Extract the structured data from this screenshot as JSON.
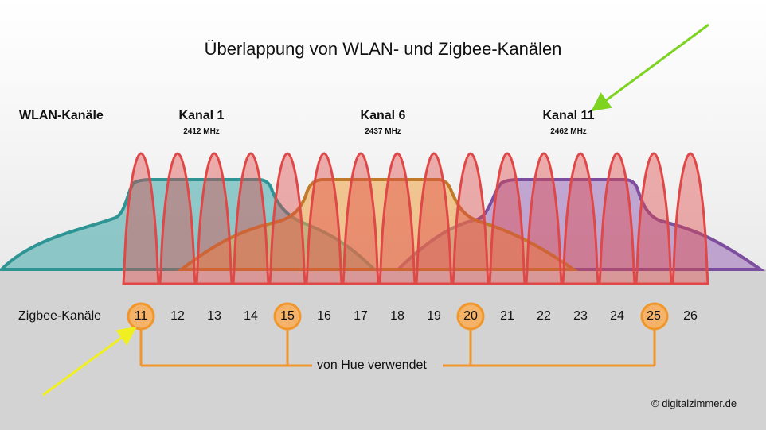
{
  "title": "Überlappung von WLAN- und Zigbee-Kanälen",
  "wlan": {
    "label": "WLAN-Kanäle",
    "channels": [
      {
        "name": "Kanal 1",
        "freq": "2412 MHz",
        "color": "#3ea8a8"
      },
      {
        "name": "Kanal 6",
        "freq": "2437 MHz",
        "color": "#f0a040"
      },
      {
        "name": "Kanal 11",
        "freq": "2462 MHz",
        "color": "#9a68b8"
      }
    ]
  },
  "zigbee": {
    "label": "Zigbee-Kanäle",
    "channels": [
      "11",
      "12",
      "13",
      "14",
      "15",
      "16",
      "17",
      "18",
      "19",
      "20",
      "21",
      "22",
      "23",
      "24",
      "25",
      "26"
    ],
    "highlighted": [
      "11",
      "15",
      "20",
      "25"
    ],
    "peak_color": "#e04848",
    "highlight_color": "#f0962a"
  },
  "hue_label": "von Hue verwendet",
  "copyright": "© digitalzimmer.de",
  "arrows": {
    "green": "#7ed321",
    "yellow": "#f0f020"
  }
}
